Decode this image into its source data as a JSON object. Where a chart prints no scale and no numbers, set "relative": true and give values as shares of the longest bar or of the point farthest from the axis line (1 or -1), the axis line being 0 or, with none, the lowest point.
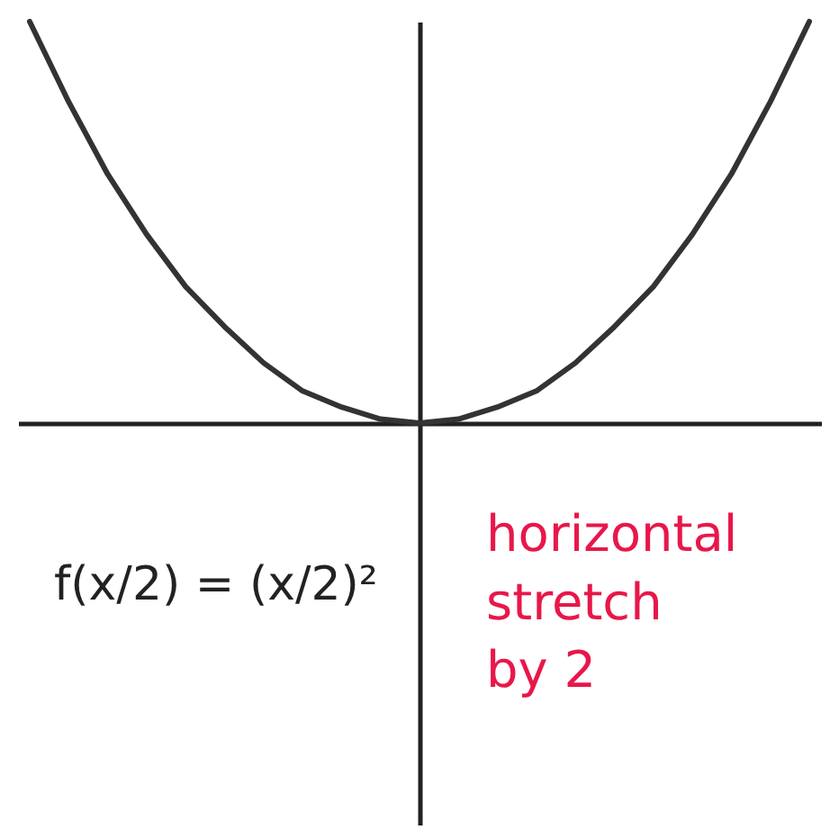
{
  "chart_data": {
    "type": "line",
    "relative": true,
    "categories": [
      null,
      null,
      null,
      null,
      null,
      null,
      null,
      null,
      null,
      null,
      null,
      null,
      null,
      null,
      null,
      null,
      null,
      null,
      null,
      null,
      null
    ],
    "series": [
      {
        "color": "#333333",
        "values": [
          1,
          0.8,
          0.62,
          0.47,
          0.34,
          0.24,
          0.15,
          0.08,
          0.04,
          0.01,
          0,
          0.01,
          0.04,
          0.08,
          0.15,
          0.24,
          0.34,
          0.47,
          0.62,
          0.8,
          1
        ]
      }
    ],
    "annotations": [
      "f(x/2) = (x/2)²",
      "horizontal\nstretch\nby 2"
    ],
    "grid": false,
    "legend": false,
    "marker": "none",
    "line_style": "solid"
  }
}
